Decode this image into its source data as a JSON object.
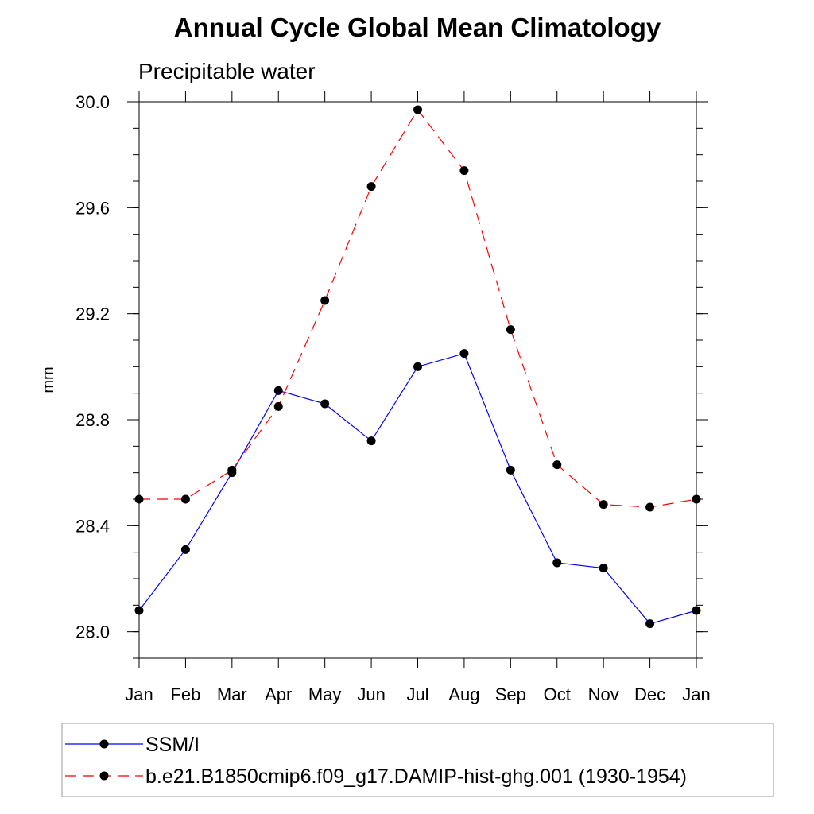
{
  "chart_data": {
    "type": "line",
    "title": "Annual Cycle Global Mean Climatology",
    "subtitle": "Precipitable water",
    "xlabel": "",
    "ylabel": "mm",
    "categories": [
      "Jan",
      "Feb",
      "Mar",
      "Apr",
      "May",
      "Jun",
      "Jul",
      "Aug",
      "Sep",
      "Oct",
      "Nov",
      "Dec",
      "Jan"
    ],
    "ylim": [
      27.9,
      30.0
    ],
    "yticks": [
      "28.0",
      "28.4",
      "28.8",
      "29.2",
      "29.6",
      "30.0"
    ],
    "ytick_values": [
      28.0,
      28.4,
      28.8,
      29.2,
      29.6,
      30.0
    ],
    "grid": false,
    "legend_position": "bottom",
    "series": [
      {
        "name": "SSM/I",
        "color": "#0000ff",
        "dash": "solid",
        "values": [
          28.08,
          28.31,
          28.6,
          28.91,
          28.86,
          28.72,
          29.0,
          29.05,
          28.61,
          28.26,
          28.24,
          28.03,
          28.08
        ]
      },
      {
        "name": "b.e21.B1850cmip6.f09_g17.DAMIP-hist-ghg.001 (1930-1954)",
        "color": "#ff0000",
        "dash": "dashed",
        "values": [
          28.5,
          28.5,
          28.61,
          28.85,
          29.25,
          29.68,
          29.97,
          29.74,
          29.14,
          28.63,
          28.48,
          28.47,
          28.5
        ]
      }
    ]
  }
}
